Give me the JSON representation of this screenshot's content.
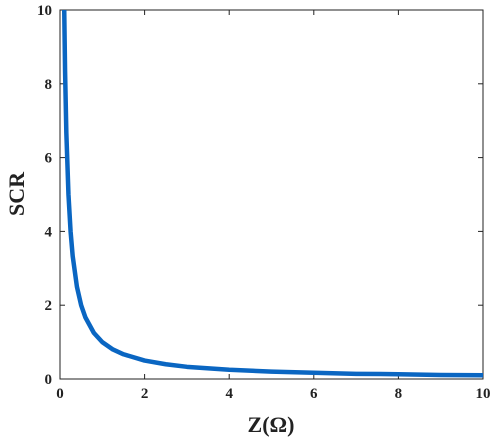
{
  "chart_data": {
    "type": "line",
    "title": "",
    "xlabel": "Z(Ω)",
    "ylabel": "SCR",
    "xlim": [
      0,
      10
    ],
    "ylim": [
      0,
      10
    ],
    "xticks": [
      "0",
      "2",
      "4",
      "6",
      "8",
      "10"
    ],
    "yticks": [
      "0",
      "2",
      "4",
      "6",
      "8",
      "10"
    ],
    "grid": false,
    "series": [
      {
        "color": "#0a66c2",
        "x": [
          0.1,
          0.12,
          0.15,
          0.2,
          0.25,
          0.3,
          0.4,
          0.5,
          0.6,
          0.8,
          1.0,
          1.25,
          1.5,
          2.0,
          2.5,
          3.0,
          4.0,
          5.0,
          6.0,
          7.0,
          8.0,
          9.0,
          10.0
        ],
        "y": [
          10.0,
          8.33,
          6.67,
          5.0,
          4.0,
          3.33,
          2.5,
          2.0,
          1.67,
          1.25,
          1.0,
          0.8,
          0.67,
          0.5,
          0.4,
          0.33,
          0.25,
          0.2,
          0.17,
          0.14,
          0.13,
          0.11,
          0.1
        ]
      }
    ]
  }
}
